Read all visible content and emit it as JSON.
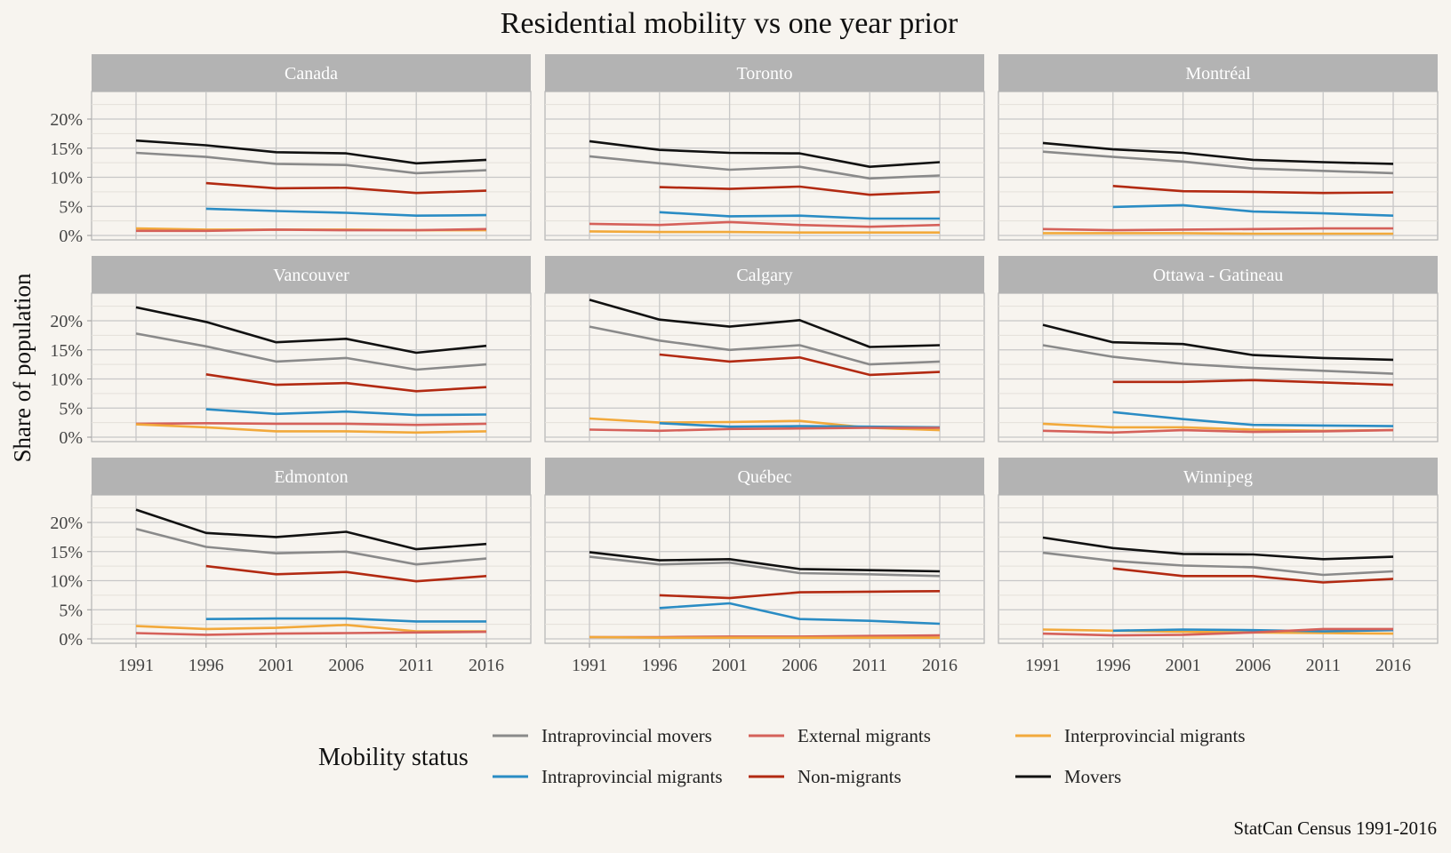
{
  "chart_data": {
    "type": "line",
    "title": "Residential mobility vs one year prior",
    "ylabel": "Share of population",
    "xlabel": "",
    "caption": "StatCan Census 1991-2016",
    "x": [
      1991,
      1996,
      2001,
      2006,
      2011,
      2016
    ],
    "x_tick_labels": [
      "1991",
      "1996",
      "2001",
      "2006",
      "2011",
      "2016"
    ],
    "ylim": [
      0,
      24
    ],
    "y_ticks": [
      0,
      5,
      10,
      15,
      20
    ],
    "y_tick_labels": [
      "0%",
      "5%",
      "10%",
      "15%",
      "20%"
    ],
    "grid": true,
    "legend": {
      "title": "Mobility status",
      "placement": "bottom",
      "items": [
        {
          "label": "Intraprovincial movers",
          "color": "#8a8a8a"
        },
        {
          "label": "Intraprovincial migrants",
          "color": "#2a8cc4"
        },
        {
          "label": "External migrants",
          "color": "#d5615a"
        },
        {
          "label": "Non-migrants",
          "color": "#b22a12"
        },
        {
          "label": "Interprovincial migrants",
          "color": "#f2a93b"
        },
        {
          "label": "Movers",
          "color": "#111111"
        }
      ]
    },
    "panels": [
      {
        "name": "Canada",
        "series": [
          {
            "name": "Movers",
            "values": [
              16.3,
              15.5,
              14.3,
              14.1,
              12.4,
              13.0
            ]
          },
          {
            "name": "Intraprovincial movers",
            "values": [
              14.2,
              13.5,
              12.3,
              12.1,
              10.7,
              11.2
            ]
          },
          {
            "name": "Non-migrants",
            "values": [
              null,
              9.0,
              8.1,
              8.2,
              7.3,
              7.7
            ]
          },
          {
            "name": "Intraprovincial migrants",
            "values": [
              null,
              4.6,
              4.2,
              3.9,
              3.4,
              3.5
            ]
          },
          {
            "name": "Interprovincial migrants",
            "values": [
              1.2,
              1.0,
              1.0,
              1.0,
              0.9,
              0.9
            ]
          },
          {
            "name": "External migrants",
            "values": [
              0.8,
              0.8,
              1.0,
              0.9,
              0.9,
              1.1
            ]
          }
        ]
      },
      {
        "name": "Toronto",
        "series": [
          {
            "name": "Movers",
            "values": [
              16.2,
              14.7,
              14.2,
              14.1,
              11.8,
              12.6
            ]
          },
          {
            "name": "Intraprovincial movers",
            "values": [
              13.6,
              12.4,
              11.3,
              11.8,
              9.8,
              10.3
            ]
          },
          {
            "name": "Non-migrants",
            "values": [
              null,
              8.3,
              8.0,
              8.4,
              7.0,
              7.5
            ]
          },
          {
            "name": "Intraprovincial migrants",
            "values": [
              null,
              4.0,
              3.3,
              3.4,
              2.9,
              2.9
            ]
          },
          {
            "name": "External migrants",
            "values": [
              2.0,
              1.8,
              2.3,
              1.8,
              1.5,
              1.8
            ]
          },
          {
            "name": "Interprovincial migrants",
            "values": [
              0.7,
              0.6,
              0.6,
              0.5,
              0.5,
              0.5
            ]
          }
        ]
      },
      {
        "name": "Montréal",
        "series": [
          {
            "name": "Movers",
            "values": [
              15.9,
              14.8,
              14.2,
              13.0,
              12.6,
              12.3
            ]
          },
          {
            "name": "Intraprovincial movers",
            "values": [
              14.4,
              13.5,
              12.7,
              11.5,
              11.1,
              10.7
            ]
          },
          {
            "name": "Non-migrants",
            "values": [
              null,
              8.5,
              7.6,
              7.5,
              7.3,
              7.4
            ]
          },
          {
            "name": "Intraprovincial migrants",
            "values": [
              null,
              4.9,
              5.2,
              4.1,
              3.8,
              3.4
            ]
          },
          {
            "name": "External migrants",
            "values": [
              1.1,
              0.9,
              1.0,
              1.1,
              1.2,
              1.2
            ]
          },
          {
            "name": "Interprovincial migrants",
            "values": [
              0.4,
              0.4,
              0.4,
              0.3,
              0.3,
              0.3
            ]
          }
        ]
      },
      {
        "name": "Vancouver",
        "series": [
          {
            "name": "Movers",
            "values": [
              22.3,
              19.8,
              16.3,
              16.9,
              14.5,
              15.7
            ]
          },
          {
            "name": "Intraprovincial movers",
            "values": [
              17.8,
              15.6,
              13.0,
              13.6,
              11.6,
              12.5
            ]
          },
          {
            "name": "Non-migrants",
            "values": [
              null,
              10.8,
              9.0,
              9.3,
              7.9,
              8.6
            ]
          },
          {
            "name": "Intraprovincial migrants",
            "values": [
              null,
              4.8,
              4.0,
              4.4,
              3.8,
              3.9
            ]
          },
          {
            "name": "External migrants",
            "values": [
              2.3,
              2.4,
              2.3,
              2.3,
              2.1,
              2.3
            ]
          },
          {
            "name": "Interprovincial migrants",
            "values": [
              2.2,
              1.7,
              1.0,
              1.0,
              0.8,
              1.0
            ]
          }
        ]
      },
      {
        "name": "Calgary",
        "series": [
          {
            "name": "Movers",
            "values": [
              23.6,
              20.2,
              19.0,
              20.1,
              15.5,
              15.8
            ]
          },
          {
            "name": "Intraprovincial movers",
            "values": [
              19.0,
              16.6,
              15.0,
              15.8,
              12.5,
              13.0
            ]
          },
          {
            "name": "Non-migrants",
            "values": [
              null,
              14.2,
              13.0,
              13.7,
              10.7,
              11.2
            ]
          },
          {
            "name": "Interprovincial migrants",
            "values": [
              3.2,
              2.5,
              2.6,
              2.8,
              1.6,
              1.2
            ]
          },
          {
            "name": "Intraprovincial migrants",
            "values": [
              null,
              2.4,
              1.8,
              1.9,
              1.8,
              1.7
            ]
          },
          {
            "name": "External migrants",
            "values": [
              1.3,
              1.1,
              1.4,
              1.5,
              1.6,
              1.6
            ]
          }
        ]
      },
      {
        "name": "Ottawa - Gatineau",
        "series": [
          {
            "name": "Movers",
            "values": [
              19.3,
              16.3,
              16.0,
              14.1,
              13.6,
              13.3
            ]
          },
          {
            "name": "Intraprovincial movers",
            "values": [
              15.8,
              13.8,
              12.6,
              11.9,
              11.4,
              10.9
            ]
          },
          {
            "name": "Non-migrants",
            "values": [
              null,
              9.5,
              9.5,
              9.8,
              9.4,
              9.0
            ]
          },
          {
            "name": "Intraprovincial migrants",
            "values": [
              null,
              4.3,
              3.1,
              2.1,
              2.0,
              1.9
            ]
          },
          {
            "name": "Interprovincial migrants",
            "values": [
              2.3,
              1.7,
              1.7,
              1.3,
              1.1,
              1.2
            ]
          },
          {
            "name": "External migrants",
            "values": [
              1.1,
              0.8,
              1.2,
              0.9,
              1.0,
              1.2
            ]
          }
        ]
      },
      {
        "name": "Edmonton",
        "series": [
          {
            "name": "Movers",
            "values": [
              22.2,
              18.2,
              17.5,
              18.4,
              15.4,
              16.3
            ]
          },
          {
            "name": "Intraprovincial movers",
            "values": [
              18.9,
              15.8,
              14.7,
              15.0,
              12.8,
              13.8
            ]
          },
          {
            "name": "Non-migrants",
            "values": [
              null,
              12.5,
              11.1,
              11.5,
              9.9,
              10.8
            ]
          },
          {
            "name": "Intraprovincial migrants",
            "values": [
              null,
              3.4,
              3.5,
              3.5,
              3.0,
              3.0
            ]
          },
          {
            "name": "Interprovincial migrants",
            "values": [
              2.2,
              1.7,
              1.9,
              2.4,
              1.3,
              1.3
            ]
          },
          {
            "name": "External migrants",
            "values": [
              1.0,
              0.7,
              0.9,
              1.0,
              1.1,
              1.2
            ]
          }
        ]
      },
      {
        "name": "Québec",
        "series": [
          {
            "name": "Movers",
            "values": [
              14.9,
              13.5,
              13.7,
              12.0,
              11.8,
              11.6
            ]
          },
          {
            "name": "Intraprovincial movers",
            "values": [
              14.1,
              12.8,
              13.1,
              11.3,
              11.1,
              10.8
            ]
          },
          {
            "name": "Non-migrants",
            "values": [
              null,
              7.5,
              7.0,
              8.0,
              8.1,
              8.2
            ]
          },
          {
            "name": "Intraprovincial migrants",
            "values": [
              null,
              5.3,
              6.1,
              3.4,
              3.1,
              2.6
            ]
          },
          {
            "name": "External migrants",
            "values": [
              0.3,
              0.3,
              0.4,
              0.4,
              0.5,
              0.6
            ]
          },
          {
            "name": "Interprovincial migrants",
            "values": [
              0.3,
              0.2,
              0.2,
              0.2,
              0.2,
              0.2
            ]
          }
        ]
      },
      {
        "name": "Winnipeg",
        "series": [
          {
            "name": "Movers",
            "values": [
              17.4,
              15.6,
              14.6,
              14.5,
              13.7,
              14.1
            ]
          },
          {
            "name": "Intraprovincial movers",
            "values": [
              14.8,
              13.4,
              12.6,
              12.3,
              11.0,
              11.6
            ]
          },
          {
            "name": "Non-migrants",
            "values": [
              null,
              12.1,
              10.8,
              10.8,
              9.7,
              10.3
            ]
          },
          {
            "name": "Interprovincial migrants",
            "values": [
              1.6,
              1.4,
              1.2,
              1.1,
              1.0,
              0.9
            ]
          },
          {
            "name": "Intraprovincial migrants",
            "values": [
              null,
              1.4,
              1.6,
              1.5,
              1.3,
              1.5
            ]
          },
          {
            "name": "External migrants",
            "values": [
              0.9,
              0.6,
              0.7,
              1.1,
              1.7,
              1.7
            ]
          }
        ]
      }
    ]
  }
}
